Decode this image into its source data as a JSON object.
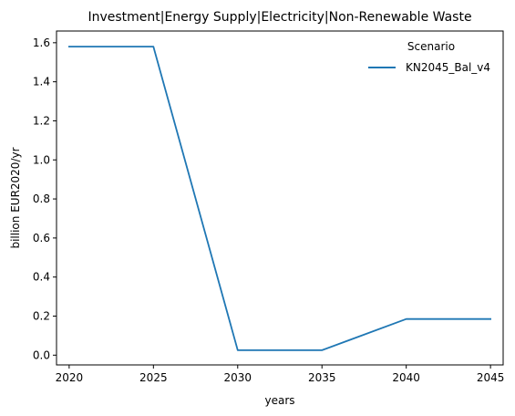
{
  "chart_data": {
    "type": "line",
    "title": "Investment|Energy Supply|Electricity|Non-Renewable Waste",
    "xlabel": "years",
    "ylabel": "billion EUR2020/yr",
    "x": [
      2020,
      2025,
      2030,
      2035,
      2040,
      2045
    ],
    "xlim": [
      2019.25,
      2045.75
    ],
    "ylim": [
      -0.05,
      1.66
    ],
    "x_ticks": [
      "2020",
      "2025",
      "2030",
      "2035",
      "2040",
      "2045"
    ],
    "y_ticks": [
      "0.0",
      "0.2",
      "0.4",
      "0.6",
      "0.8",
      "1.0",
      "1.2",
      "1.4",
      "1.6"
    ],
    "grid": false,
    "legend": {
      "title": "Scenario",
      "placement": "top-right"
    },
    "series": [
      {
        "name": "KN2045_Bal_v4",
        "color": "#1f77b4",
        "values": [
          1.58,
          1.58,
          0.025,
          0.025,
          0.185,
          0.185
        ]
      }
    ]
  }
}
